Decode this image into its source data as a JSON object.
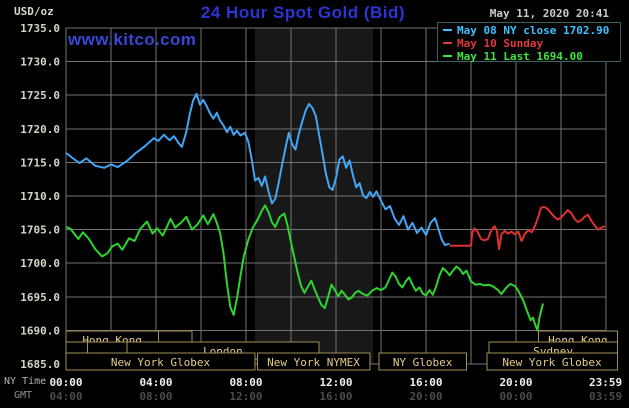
{
  "header": {
    "unit_label": "USD/oz",
    "title": "24 Hour Spot Gold (Bid)",
    "datetime": "May 11, 2020 20:41",
    "watermark": "www.kitco.com"
  },
  "legend": {
    "items": [
      {
        "label": "May 08 NY close 1702.90",
        "color": "#3cc3ff"
      },
      {
        "label": "May 10 Sunday",
        "color": "#e03838"
      },
      {
        "label": "May 11 Last 1694.00",
        "color": "#3fe43f"
      }
    ]
  },
  "axes": {
    "y": {
      "min": 1685,
      "max": 1735,
      "step": 5,
      "tick_labels": [
        "1735.0",
        "1730.0",
        "1725.0",
        "1720.0",
        "1715.0",
        "1710.0",
        "1705.0",
        "1700.0",
        "1695.0",
        "1690.0",
        "1685.0"
      ]
    },
    "x": {
      "ny_label": "NY Time",
      "gmt_label": "GMT",
      "tick_hours": [
        0,
        4,
        8,
        12,
        16,
        20,
        23.983
      ],
      "ny_ticks": [
        "00:00",
        "04:00",
        "08:00",
        "12:00",
        "16:00",
        "20:00",
        "23:59"
      ],
      "gmt_ticks": [
        "04:00",
        "08:00",
        "12:00",
        "16:00",
        "20:00",
        "00:00",
        "03:59"
      ]
    }
  },
  "sessions": [
    {
      "row": 1,
      "label": "Hong Kong",
      "start": 0,
      "end": 4.1
    },
    {
      "row": 1,
      "label": "",
      "start": 4.1,
      "end": 5.6
    },
    {
      "row": 1,
      "label": "Hong Kong",
      "start": 21.0,
      "end": 24.5
    },
    {
      "row": 2,
      "label": "",
      "start": 0,
      "end": 0.95
    },
    {
      "row": 2,
      "label": "",
      "start": 0.95,
      "end": 2.7
    },
    {
      "row": 2,
      "label": "London",
      "start": 2.7,
      "end": 11.25
    },
    {
      "row": 2,
      "label": "Sydney",
      "start": 18.8,
      "end": 24.5
    },
    {
      "row": 3,
      "label": "New York Globex",
      "start": 0,
      "end": 8.4
    },
    {
      "row": 3,
      "label": "New York NYMEX",
      "start": 8.5,
      "end": 13.5
    },
    {
      "row": 3,
      "label": "NY Globex",
      "start": 13.9,
      "end": 17.8
    },
    {
      "row": 3,
      "label": "New York Globex",
      "start": 18.7,
      "end": 24.5
    }
  ],
  "colors": {
    "background": "#000000",
    "grid": "#737373",
    "nymex_band": "#181818",
    "title_blue": "#2c34d8",
    "watermark_blue": "#3748d8",
    "session_border": "#a19155",
    "session_text": "#e6cb8b",
    "series_may08": "#42a5f5",
    "series_may10": "#e03030",
    "series_may11": "#2fd330"
  },
  "chart_data": {
    "type": "line",
    "title": "24 Hour Spot Gold (Bid)",
    "xlabel": "NY Time (hours)",
    "ylabel": "USD/oz",
    "xlim": [
      0,
      24
    ],
    "ylim": [
      1685,
      1735
    ],
    "grid": true,
    "nymex_band_hours": [
      8.4,
      13.65
    ],
    "series": [
      {
        "name": "May 08 NY close 1702.90",
        "color": "#42a5f5",
        "points": [
          [
            0.0,
            1716.4
          ],
          [
            0.35,
            1715.5
          ],
          [
            0.6,
            1714.9
          ],
          [
            0.9,
            1715.6
          ],
          [
            1.3,
            1714.5
          ],
          [
            1.7,
            1714.2
          ],
          [
            2.0,
            1714.7
          ],
          [
            2.3,
            1714.3
          ],
          [
            2.7,
            1715.2
          ],
          [
            3.1,
            1716.4
          ],
          [
            3.5,
            1717.4
          ],
          [
            3.9,
            1718.6
          ],
          [
            4.1,
            1718.2
          ],
          [
            4.35,
            1719.1
          ],
          [
            4.6,
            1718.3
          ],
          [
            4.8,
            1718.9
          ],
          [
            5.0,
            1717.9
          ],
          [
            5.15,
            1717.3
          ],
          [
            5.35,
            1719.6
          ],
          [
            5.5,
            1722.2
          ],
          [
            5.65,
            1724.2
          ],
          [
            5.8,
            1725.2
          ],
          [
            5.95,
            1723.6
          ],
          [
            6.1,
            1724.3
          ],
          [
            6.25,
            1723.4
          ],
          [
            6.4,
            1722.3
          ],
          [
            6.55,
            1721.5
          ],
          [
            6.7,
            1722.4
          ],
          [
            6.85,
            1721.2
          ],
          [
            7.0,
            1720.5
          ],
          [
            7.15,
            1719.5
          ],
          [
            7.3,
            1720.3
          ],
          [
            7.45,
            1719.1
          ],
          [
            7.6,
            1719.7
          ],
          [
            7.75,
            1719.0
          ],
          [
            7.95,
            1719.4
          ],
          [
            8.1,
            1718.1
          ],
          [
            8.25,
            1715.6
          ],
          [
            8.4,
            1712.3
          ],
          [
            8.55,
            1712.7
          ],
          [
            8.7,
            1711.5
          ],
          [
            8.85,
            1712.9
          ],
          [
            9.0,
            1710.7
          ],
          [
            9.15,
            1708.9
          ],
          [
            9.3,
            1709.6
          ],
          [
            9.45,
            1711.9
          ],
          [
            9.6,
            1714.6
          ],
          [
            9.75,
            1717.1
          ],
          [
            9.9,
            1719.4
          ],
          [
            10.05,
            1717.7
          ],
          [
            10.2,
            1716.9
          ],
          [
            10.35,
            1719.3
          ],
          [
            10.5,
            1721.1
          ],
          [
            10.65,
            1722.7
          ],
          [
            10.8,
            1723.7
          ],
          [
            10.95,
            1723.1
          ],
          [
            11.1,
            1721.9
          ],
          [
            11.25,
            1719.1
          ],
          [
            11.4,
            1716.3
          ],
          [
            11.55,
            1713.3
          ],
          [
            11.7,
            1711.3
          ],
          [
            11.85,
            1710.9
          ],
          [
            12.0,
            1712.7
          ],
          [
            12.15,
            1715.4
          ],
          [
            12.3,
            1715.9
          ],
          [
            12.45,
            1714.2
          ],
          [
            12.6,
            1715.3
          ],
          [
            12.75,
            1713.1
          ],
          [
            12.9,
            1711.3
          ],
          [
            13.05,
            1711.9
          ],
          [
            13.2,
            1710.1
          ],
          [
            13.35,
            1709.7
          ],
          [
            13.5,
            1710.6
          ],
          [
            13.65,
            1709.9
          ],
          [
            13.8,
            1710.7
          ],
          [
            14.0,
            1709.3
          ],
          [
            14.2,
            1708.0
          ],
          [
            14.4,
            1708.5
          ],
          [
            14.6,
            1706.7
          ],
          [
            14.8,
            1705.7
          ],
          [
            15.0,
            1707.0
          ],
          [
            15.2,
            1705.0
          ],
          [
            15.4,
            1706.0
          ],
          [
            15.6,
            1704.5
          ],
          [
            15.8,
            1705.3
          ],
          [
            16.0,
            1704.2
          ],
          [
            16.2,
            1706.0
          ],
          [
            16.4,
            1706.7
          ],
          [
            16.55,
            1705.1
          ],
          [
            16.7,
            1703.5
          ],
          [
            16.85,
            1702.7
          ],
          [
            17.05,
            1702.9
          ]
        ]
      },
      {
        "name": "May 10 Sunday",
        "color": "#e03030",
        "points": [
          [
            17.05,
            1702.6
          ],
          [
            18.0,
            1702.6
          ],
          [
            18.05,
            1704.4
          ],
          [
            18.15,
            1705.2
          ],
          [
            18.3,
            1704.6
          ],
          [
            18.45,
            1703.6
          ],
          [
            18.6,
            1703.4
          ],
          [
            18.75,
            1703.6
          ],
          [
            18.9,
            1704.9
          ],
          [
            19.05,
            1705.5
          ],
          [
            19.15,
            1704.8
          ],
          [
            19.25,
            1702.1
          ],
          [
            19.35,
            1704.3
          ],
          [
            19.5,
            1704.8
          ],
          [
            19.65,
            1704.4
          ],
          [
            19.8,
            1704.7
          ],
          [
            19.95,
            1704.3
          ],
          [
            20.1,
            1704.7
          ],
          [
            20.25,
            1703.3
          ],
          [
            20.4,
            1704.4
          ],
          [
            20.55,
            1704.9
          ],
          [
            20.7,
            1704.6
          ],
          [
            20.85,
            1705.6
          ],
          [
            21.0,
            1707.0
          ],
          [
            21.1,
            1708.2
          ],
          [
            21.25,
            1708.4
          ],
          [
            21.4,
            1708.1
          ],
          [
            21.55,
            1707.5
          ],
          [
            21.7,
            1706.9
          ],
          [
            21.85,
            1706.5
          ],
          [
            22.0,
            1706.8
          ],
          [
            22.15,
            1707.3
          ],
          [
            22.3,
            1707.9
          ],
          [
            22.45,
            1707.5
          ],
          [
            22.6,
            1706.6
          ],
          [
            22.75,
            1706.1
          ],
          [
            22.9,
            1706.4
          ],
          [
            23.05,
            1706.9
          ],
          [
            23.2,
            1707.2
          ],
          [
            23.35,
            1706.3
          ],
          [
            23.5,
            1705.6
          ],
          [
            23.65,
            1705.0
          ],
          [
            23.8,
            1705.3
          ],
          [
            23.95,
            1705.5
          ]
        ]
      },
      {
        "name": "May 11 Last 1694.00",
        "color": "#2fd330",
        "points": [
          [
            0.0,
            1705.4
          ],
          [
            0.2,
            1705.1
          ],
          [
            0.55,
            1703.6
          ],
          [
            0.75,
            1704.6
          ],
          [
            1.0,
            1703.7
          ],
          [
            1.3,
            1702.1
          ],
          [
            1.6,
            1701.0
          ],
          [
            1.85,
            1701.5
          ],
          [
            2.05,
            1702.5
          ],
          [
            2.3,
            1702.9
          ],
          [
            2.5,
            1702.0
          ],
          [
            2.8,
            1703.7
          ],
          [
            3.05,
            1703.3
          ],
          [
            3.3,
            1705.1
          ],
          [
            3.6,
            1706.2
          ],
          [
            3.85,
            1704.4
          ],
          [
            4.05,
            1705.2
          ],
          [
            4.3,
            1704.1
          ],
          [
            4.65,
            1706.6
          ],
          [
            4.85,
            1705.3
          ],
          [
            5.1,
            1706.0
          ],
          [
            5.35,
            1706.9
          ],
          [
            5.6,
            1705.0
          ],
          [
            5.85,
            1705.8
          ],
          [
            6.1,
            1707.1
          ],
          [
            6.3,
            1705.8
          ],
          [
            6.55,
            1707.3
          ],
          [
            6.7,
            1706.0
          ],
          [
            6.85,
            1704.5
          ],
          [
            7.0,
            1701.5
          ],
          [
            7.15,
            1697.0
          ],
          [
            7.3,
            1693.5
          ],
          [
            7.45,
            1692.3
          ],
          [
            7.6,
            1694.8
          ],
          [
            7.75,
            1698.0
          ],
          [
            7.9,
            1701.0
          ],
          [
            8.1,
            1703.5
          ],
          [
            8.3,
            1705.3
          ],
          [
            8.5,
            1706.4
          ],
          [
            8.7,
            1707.8
          ],
          [
            8.85,
            1708.6
          ],
          [
            9.0,
            1707.6
          ],
          [
            9.15,
            1706.1
          ],
          [
            9.3,
            1705.4
          ],
          [
            9.5,
            1706.9
          ],
          [
            9.7,
            1707.4
          ],
          [
            9.85,
            1705.6
          ],
          [
            10.0,
            1703.1
          ],
          [
            10.15,
            1700.8
          ],
          [
            10.3,
            1698.5
          ],
          [
            10.45,
            1696.6
          ],
          [
            10.6,
            1695.6
          ],
          [
            10.75,
            1696.5
          ],
          [
            10.9,
            1697.4
          ],
          [
            11.05,
            1696.1
          ],
          [
            11.2,
            1694.9
          ],
          [
            11.35,
            1693.8
          ],
          [
            11.5,
            1693.3
          ],
          [
            11.65,
            1695.0
          ],
          [
            11.8,
            1696.8
          ],
          [
            11.95,
            1696.0
          ],
          [
            12.1,
            1695.1
          ],
          [
            12.25,
            1695.9
          ],
          [
            12.4,
            1695.3
          ],
          [
            12.55,
            1694.6
          ],
          [
            12.7,
            1694.9
          ],
          [
            12.85,
            1695.6
          ],
          [
            13.0,
            1695.9
          ],
          [
            13.2,
            1695.4
          ],
          [
            13.4,
            1695.2
          ],
          [
            13.6,
            1695.9
          ],
          [
            13.8,
            1696.3
          ],
          [
            14.0,
            1696.0
          ],
          [
            14.2,
            1696.4
          ],
          [
            14.35,
            1697.5
          ],
          [
            14.5,
            1698.6
          ],
          [
            14.65,
            1698.0
          ],
          [
            14.8,
            1696.9
          ],
          [
            14.95,
            1696.4
          ],
          [
            15.1,
            1697.3
          ],
          [
            15.25,
            1697.9
          ],
          [
            15.4,
            1696.8
          ],
          [
            15.55,
            1695.9
          ],
          [
            15.7,
            1696.4
          ],
          [
            15.85,
            1695.5
          ],
          [
            16.0,
            1695.2
          ],
          [
            16.15,
            1696.0
          ],
          [
            16.3,
            1695.3
          ],
          [
            16.45,
            1696.5
          ],
          [
            16.6,
            1698.2
          ],
          [
            16.75,
            1699.3
          ],
          [
            16.9,
            1698.8
          ],
          [
            17.05,
            1698.2
          ],
          [
            17.2,
            1698.9
          ],
          [
            17.35,
            1699.5
          ],
          [
            17.5,
            1699.1
          ],
          [
            17.65,
            1698.4
          ],
          [
            17.8,
            1698.9
          ],
          [
            18.0,
            1697.3
          ],
          [
            18.2,
            1696.8
          ],
          [
            18.4,
            1696.9
          ],
          [
            18.6,
            1696.7
          ],
          [
            18.8,
            1696.8
          ],
          [
            19.0,
            1696.5
          ],
          [
            19.2,
            1696.0
          ],
          [
            19.35,
            1695.4
          ],
          [
            19.55,
            1696.3
          ],
          [
            19.75,
            1696.9
          ],
          [
            19.95,
            1696.6
          ],
          [
            20.1,
            1695.9
          ],
          [
            20.3,
            1694.6
          ],
          [
            20.5,
            1692.8
          ],
          [
            20.65,
            1691.5
          ],
          [
            20.75,
            1691.9
          ],
          [
            20.85,
            1690.9
          ],
          [
            20.95,
            1690.0
          ],
          [
            21.05,
            1692.0
          ],
          [
            21.2,
            1694.0
          ]
        ]
      }
    ]
  }
}
